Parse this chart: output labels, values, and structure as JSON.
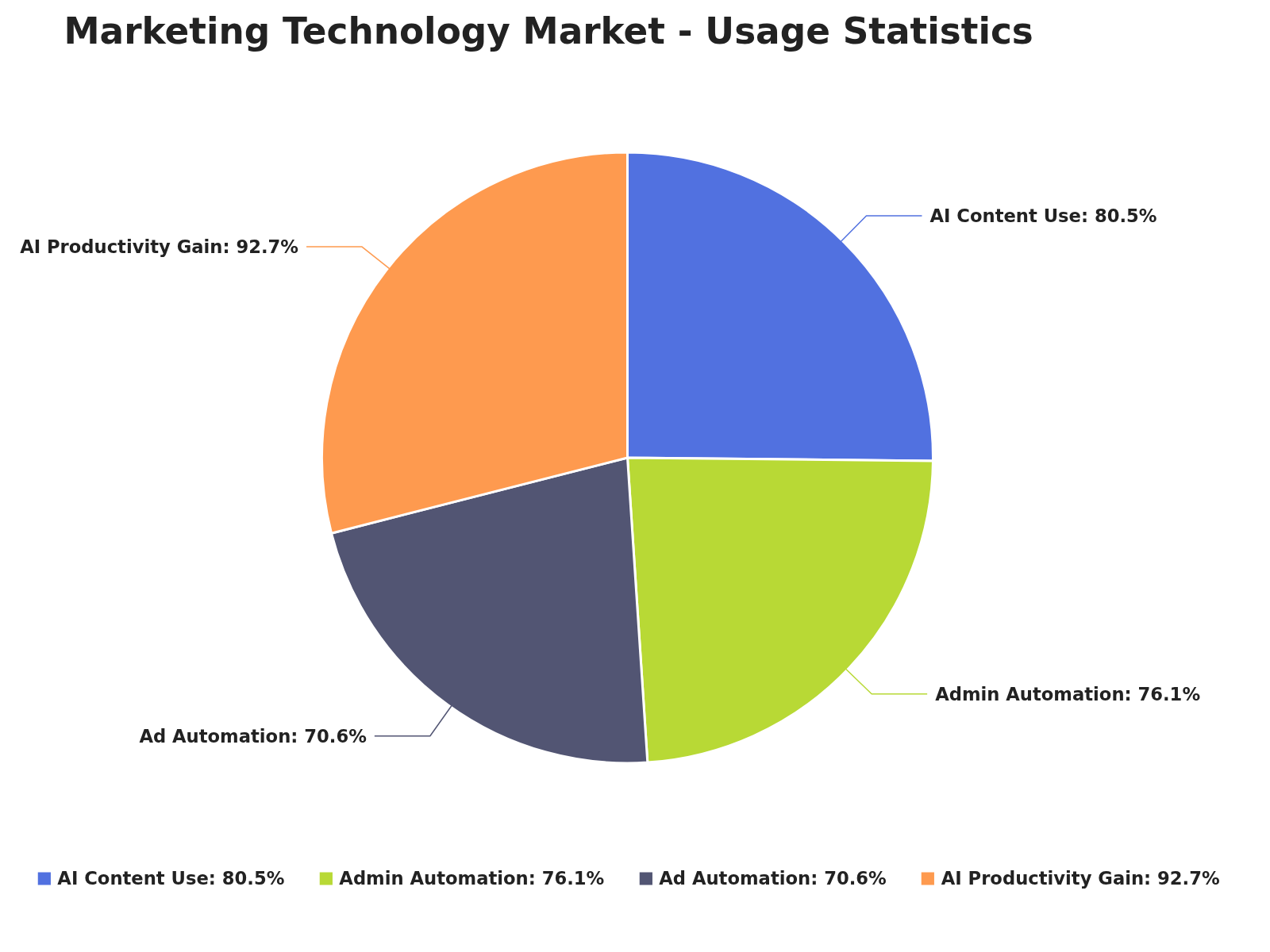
{
  "chart_data": {
    "type": "pie",
    "title": "Marketing Technology Market - Usage Statistics",
    "categories": [
      "AI Content Use: 80.5%",
      "Admin Automation: 76.1%",
      "Ad Automation: 70.6%",
      "AI Productivity Gain: 92.7%"
    ],
    "values": [
      80.5,
      76.1,
      70.6,
      92.7
    ],
    "colors": [
      "#5171e0",
      "#b8d935",
      "#525573",
      "#fe9a4f"
    ],
    "legend": "bottom"
  }
}
